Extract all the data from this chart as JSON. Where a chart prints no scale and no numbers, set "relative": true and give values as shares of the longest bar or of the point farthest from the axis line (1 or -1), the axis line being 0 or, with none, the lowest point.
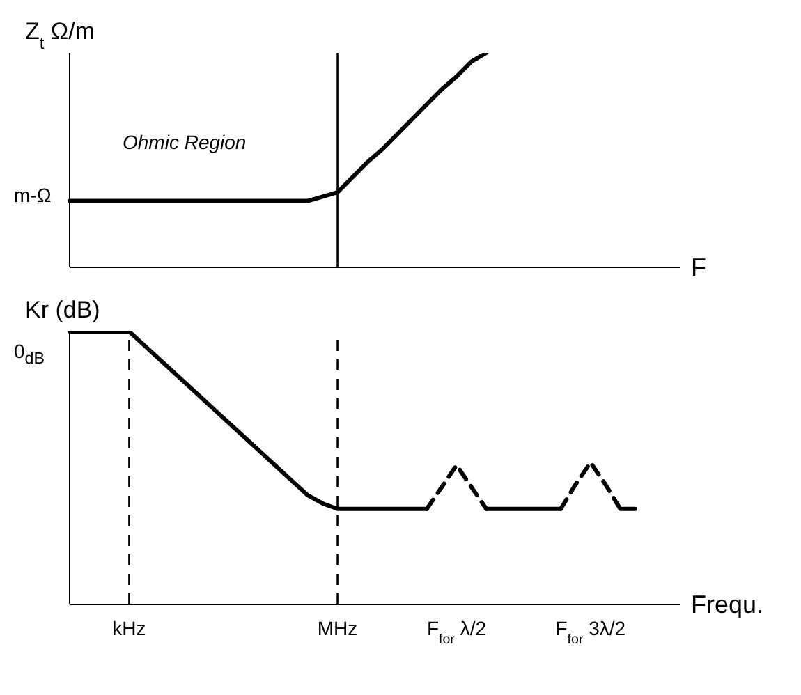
{
  "chart_data": [
    {
      "type": "line",
      "relative": true,
      "ylabel": "Z$_{t}$ Ω/m",
      "xlabel": "F",
      "tick_labels": false,
      "line_style": "solid",
      "marker": "none",
      "categories": [
        null,
        null,
        null,
        null,
        "kHz",
        null,
        null,
        null,
        null,
        null,
        null,
        null,
        null,
        null,
        null,
        null,
        null,
        null,
        "MHz",
        null,
        null,
        null,
        null,
        null,
        null,
        null,
        "F$_{for}$ λ/2",
        null,
        null,
        null,
        null,
        null,
        null,
        null,
        null,
        "F$_{for}$ 3λ/2",
        null,
        null,
        null,
        null,
        null,
        null
      ],
      "annotations": [
        "Ohmic Region",
        "m-Ω"
      ],
      "ref_lines": [
        {
          "axis": "x",
          "value": "MHz",
          "color": "#000000",
          "line_style": "solid"
        }
      ],
      "series": [
        {
          "color": "#000000",
          "values": [
            0.31,
            0.31,
            0.31,
            0.31,
            0.31,
            0.31,
            0.31,
            0.31,
            0.31,
            0.31,
            0.31,
            0.31,
            0.31,
            0.31,
            0.31,
            0.31,
            0.31,
            0.33,
            0.35,
            0.42,
            0.49,
            0.55,
            0.62,
            0.69,
            0.76,
            0.83,
            0.89,
            0.96,
            1,
            null,
            null,
            null,
            null,
            null,
            null,
            null,
            null,
            null,
            null,
            null,
            null,
            null
          ]
        }
      ]
    },
    {
      "type": "line",
      "relative": true,
      "ylabel": "Kr (dB)",
      "xlabel": "Frequ.",
      "tick_labels": "x",
      "marker": "none",
      "categories": [
        null,
        null,
        null,
        null,
        "kHz",
        null,
        null,
        null,
        null,
        null,
        null,
        null,
        null,
        null,
        null,
        null,
        null,
        null,
        "MHz",
        null,
        null,
        null,
        null,
        null,
        null,
        null,
        "F$_{for}$ λ/2",
        null,
        null,
        null,
        null,
        null,
        null,
        null,
        null,
        "F$_{for}$ 3λ/2",
        null,
        null,
        null,
        null,
        null,
        null
      ],
      "annotations": [
        "0$_{dB}$"
      ],
      "ref_lines": [
        {
          "axis": "x",
          "value": "kHz",
          "color": "#000000",
          "line_style": "dashed"
        },
        {
          "axis": "x",
          "value": "MHz",
          "color": "#000000",
          "line_style": "dashed"
        }
      ],
      "series": [
        {
          "color": "#000000",
          "line_style": "solid",
          "values": [
            1,
            1,
            1,
            1,
            1,
            0.95,
            0.9,
            0.85,
            0.8,
            0.75,
            0.7,
            0.65,
            0.6,
            0.55,
            0.5,
            0.45,
            0.4,
            0.37,
            0.35,
            0.35,
            0.35,
            0.35,
            0.35,
            0.35,
            0.35,
            null,
            null,
            null,
            0.35,
            0.35,
            0.35,
            0.35,
            0.35,
            0.35,
            null,
            null,
            null,
            0.35,
            0.35,
            null,
            null,
            null
          ]
        },
        {
          "color": "#000000",
          "line_style": "dashed",
          "values": [
            null,
            null,
            null,
            null,
            null,
            null,
            null,
            null,
            null,
            null,
            null,
            null,
            null,
            null,
            null,
            null,
            null,
            null,
            null,
            null,
            null,
            null,
            null,
            null,
            0.35,
            0.43,
            0.51,
            0.43,
            0.35,
            null,
            null,
            null,
            null,
            0.35,
            0.44,
            0.52,
            0.44,
            0.35,
            null,
            null,
            null,
            null
          ]
        }
      ]
    }
  ]
}
